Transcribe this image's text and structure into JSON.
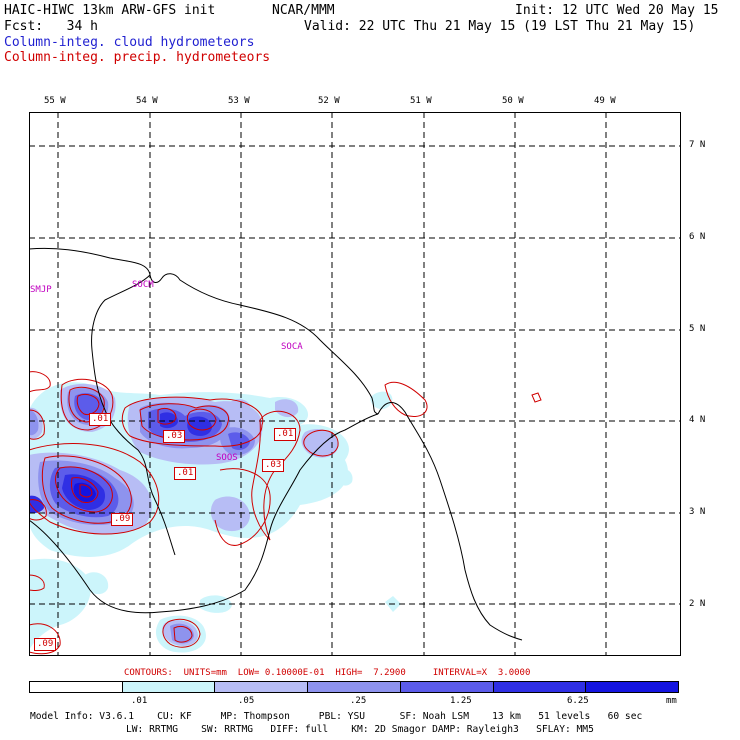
{
  "header": {
    "model_title": "HAIC-HIWC 13km ARW-GFS init",
    "org": "NCAR/MMM",
    "init": "Init: 12 UTC Wed 20 May 15",
    "forecast": "Fcst:   34 h",
    "valid": "Valid: 22 UTC Thu 21 May 15 (19 LST Thu 21 May 15)",
    "field_cloud": "Column-integ. cloud hydrometeors",
    "field_precip": "Column-integ. precip. hydrometeors"
  },
  "colors": {
    "cloud_text": "#1f1fd0",
    "precip_text": "#d00000",
    "station": "#c000c0",
    "shade_1": "#ccf5fb",
    "shade_2": "#b7bdf5",
    "shade_3": "#8e93ee",
    "shade_4": "#5c5cea",
    "shade_5": "#2f2fe4",
    "shade_6": "#1414e0"
  },
  "axes": {
    "lon_labels": [
      "55 W",
      "54 W",
      "53 W",
      "52 W",
      "51 W",
      "50 W",
      "49 W"
    ],
    "lat_labels": [
      "7 N",
      "6 N",
      "5 N",
      "4 N",
      "3 N",
      "2 N"
    ]
  },
  "stations": [
    "SMJP",
    "SOCM",
    "SOCA",
    "SOOS"
  ],
  "precip_labels": [
    ".01",
    ".03",
    ".01",
    ".01",
    ".03",
    ".09",
    ".09"
  ],
  "contours_line": "CONTOURS:  UNITS=mm  LOW= 0.10000E-01  HIGH=  7.2900     INTERVAL=X  3.0000",
  "colorbar": {
    "ticks": [
      ".01",
      ".05",
      ".25",
      "1.25",
      "6.25"
    ],
    "units": "mm"
  },
  "model_info": {
    "line1": "Model Info: V3.6.1    CU: KF     MP: Thompson     PBL: YSU      SF: Noah LSM    13 km   51 levels   60 sec",
    "line2": "LW: RRTMG    SW: RRTMG   DIFF: full    KM: 2D Smagor DAMP: Rayleigh3   SFLAY: MM5"
  }
}
